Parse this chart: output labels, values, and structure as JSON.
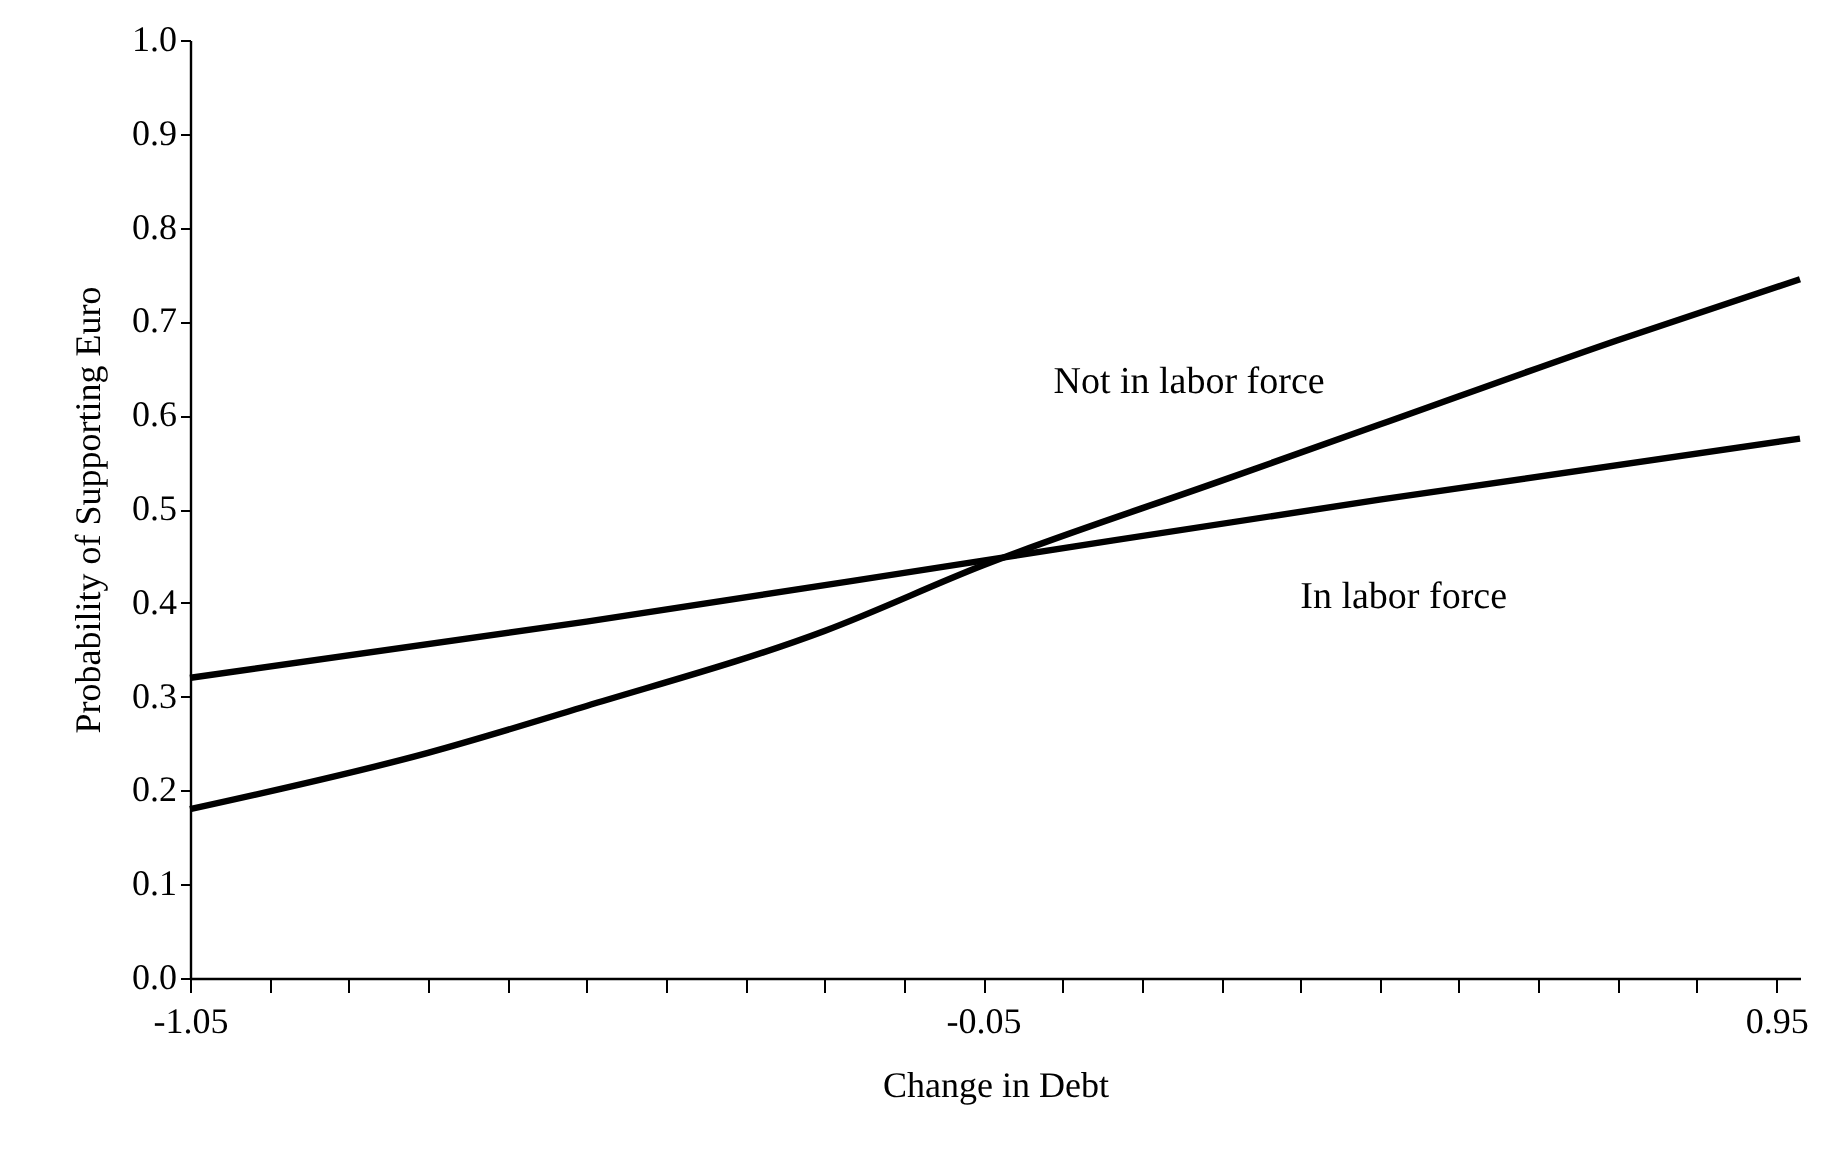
{
  "chart_data": {
    "type": "line",
    "xlabel": "Change in Debt",
    "ylabel": "Probability of Supporting Euro",
    "xlim": [
      -1.05,
      0.98
    ],
    "ylim": [
      0,
      1
    ],
    "xticks": [
      -1.05,
      {
        "value": -0.95,
        "label": null
      },
      {
        "value": -0.85,
        "label": null
      },
      {
        "value": -0.75,
        "label": null
      },
      {
        "value": -0.65,
        "label": null
      },
      {
        "value": -0.55,
        "label": null
      },
      {
        "value": -0.45,
        "label": null
      },
      {
        "value": -0.35,
        "label": null
      },
      {
        "value": -0.25,
        "label": null
      },
      {
        "value": -0.15,
        "label": null
      },
      -0.05,
      {
        "value": 0.05,
        "label": null
      },
      {
        "value": 0.15,
        "label": null
      },
      {
        "value": 0.25,
        "label": null
      },
      {
        "value": 0.35,
        "label": null
      },
      {
        "value": 0.45,
        "label": null
      },
      {
        "value": 0.55,
        "label": null
      },
      {
        "value": 0.65,
        "label": null
      },
      {
        "value": 0.75,
        "label": null
      },
      {
        "value": 0.85,
        "label": null
      },
      0.95
    ],
    "yticks": [
      {
        "value": 0,
        "label": "0.0"
      },
      0.1,
      0.2,
      0.3,
      0.4,
      0.5,
      0.6,
      0.7,
      0.8,
      0.9,
      {
        "value": 1,
        "label": "1.0"
      }
    ],
    "grid": false,
    "marker": "none",
    "line_style": "solid",
    "series": [
      {
        "name": "In labor force",
        "color": "#000000",
        "x": [
          -1.05,
          -0.55,
          -0.05,
          0.45,
          0.98
        ],
        "values": [
          0.32,
          0.38,
          0.445,
          0.51,
          0.575
        ]
      },
      {
        "name": "Not in labor force",
        "color": "#000000",
        "x": [
          -1.05,
          -0.75,
          -0.55,
          -0.25,
          -0.05,
          0.25,
          0.45,
          0.75,
          0.98
        ],
        "values": [
          0.18,
          0.24,
          0.29,
          0.37,
          0.44,
          0.53,
          0.59,
          0.68,
          0.745
        ]
      }
    ]
  }
}
